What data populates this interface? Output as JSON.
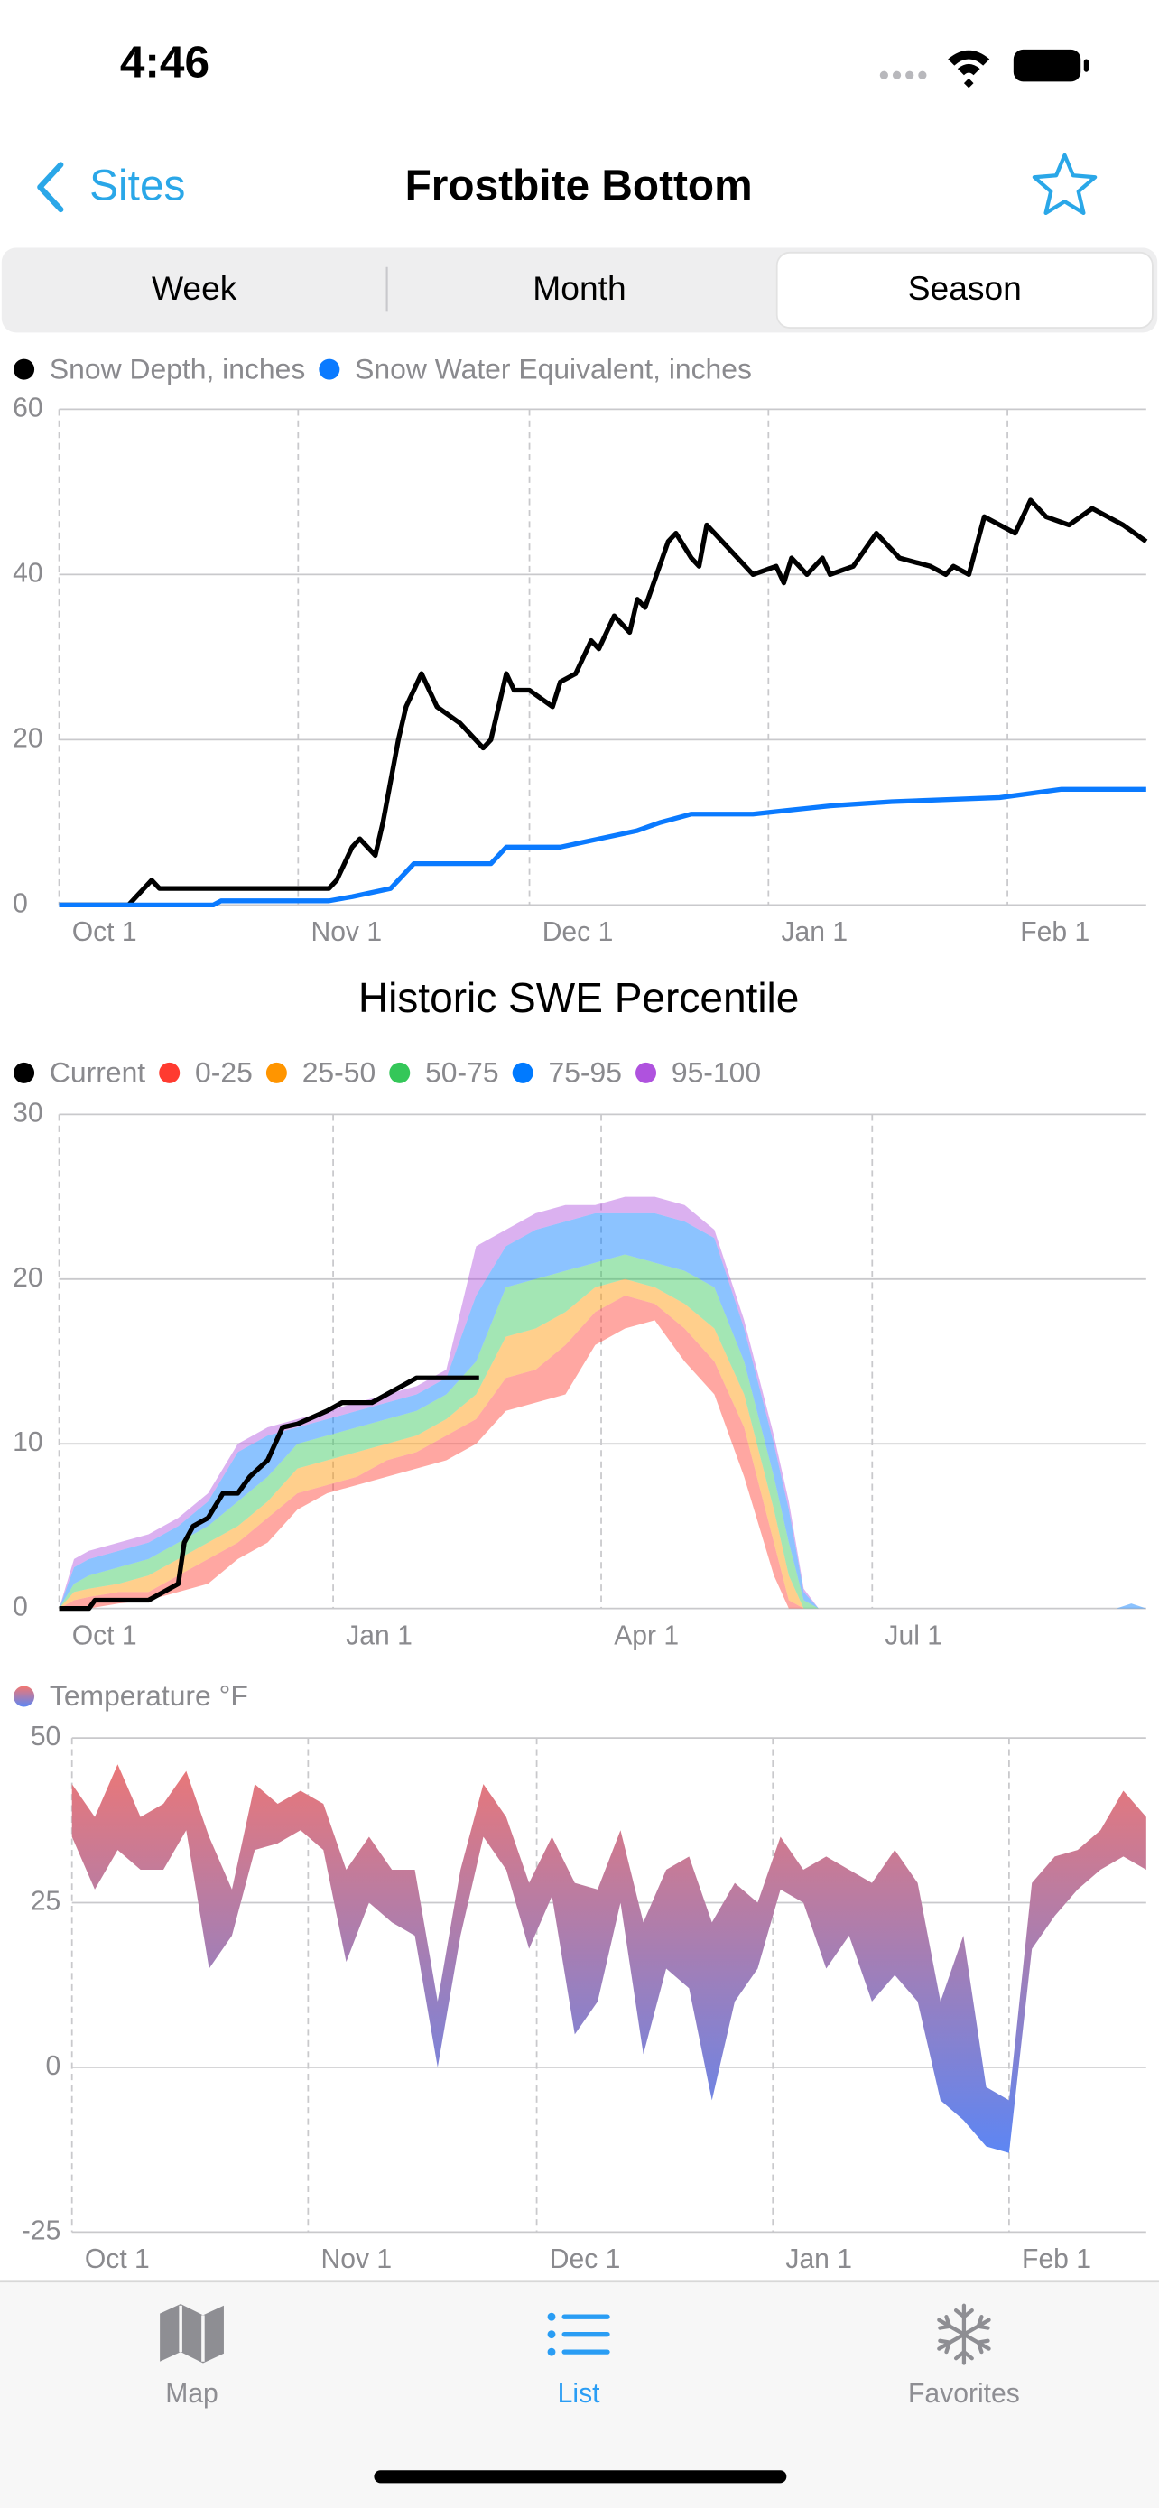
{
  "status": {
    "time": "4:46"
  },
  "nav": {
    "back": "Sites",
    "title": "Frostbite Bottom"
  },
  "segments": {
    "items": [
      "Week",
      "Month",
      "Season"
    ],
    "selected": 2
  },
  "chart_data": [
    {
      "type": "line",
      "xlim": [
        0,
        141
      ],
      "ylim": [
        0,
        60
      ],
      "yticks": [
        0,
        20,
        40,
        60
      ],
      "xticks": [
        {
          "value": 0,
          "label": "Oct 1"
        },
        {
          "value": 31,
          "label": "Nov 1"
        },
        {
          "value": 61,
          "label": "Dec 1"
        },
        {
          "value": 92,
          "label": "Jan 1"
        },
        {
          "value": 123,
          "label": "Feb 1"
        }
      ],
      "grid": true,
      "series": [
        {
          "name": "Snow Depth, inches",
          "color": "#000000",
          "x": [
            0,
            9,
            10,
            12,
            13,
            35,
            36,
            38,
            39,
            40,
            41,
            42,
            44,
            45,
            47,
            49,
            52,
            55,
            56,
            58,
            59,
            61,
            64,
            65,
            67,
            69,
            70,
            72,
            74,
            75,
            76,
            79,
            80,
            82,
            83,
            84,
            88,
            90,
            93,
            94,
            95,
            97,
            99,
            100,
            103,
            106,
            109,
            113,
            115,
            116,
            118,
            120,
            124,
            126,
            128,
            131,
            134,
            138,
            141
          ],
          "values": [
            0,
            0,
            1,
            3,
            2,
            2,
            3,
            7,
            8,
            7,
            6,
            10,
            20,
            24,
            28,
            24,
            22,
            19,
            20,
            28,
            26,
            26,
            24,
            27,
            28,
            32,
            31,
            35,
            33,
            37,
            36,
            44,
            45,
            42,
            41,
            46,
            42,
            40,
            41,
            39,
            42,
            40,
            42,
            40,
            41,
            45,
            42,
            41,
            40,
            41,
            40,
            47,
            45,
            49,
            47,
            46,
            48,
            46,
            44
          ]
        },
        {
          "name": "Snow Water Equivalent, inches",
          "color": "#0a7aff",
          "x": [
            0,
            20,
            21,
            35,
            38,
            43,
            46,
            56,
            58,
            65,
            70,
            75,
            78,
            82,
            90,
            95,
            100,
            108,
            122,
            126,
            130,
            141
          ],
          "values": [
            0,
            0,
            0.5,
            0.5,
            1,
            2,
            5,
            5,
            7,
            7,
            8,
            9,
            10,
            11,
            11,
            11.5,
            12,
            12.5,
            13,
            13.5,
            14,
            14
          ]
        }
      ]
    },
    {
      "type": "stacked_area",
      "title": "Historic SWE Percentile",
      "xlim": [
        0,
        365
      ],
      "ylim": [
        0,
        30
      ],
      "yticks": [
        0,
        10,
        20,
        30
      ],
      "xticks": [
        {
          "value": 0,
          "label": "Oct 1"
        },
        {
          "value": 92,
          "label": "Jan 1"
        },
        {
          "value": 182,
          "label": "Apr 1"
        },
        {
          "value": 273,
          "label": "Jul 1"
        }
      ],
      "grid": true,
      "area_opacity": 0.45,
      "x": [
        0,
        5,
        10,
        20,
        30,
        40,
        50,
        60,
        70,
        80,
        90,
        100,
        110,
        120,
        130,
        140,
        150,
        160,
        170,
        180,
        190,
        200,
        210,
        220,
        230,
        240,
        245,
        250,
        255,
        355,
        360,
        365
      ],
      "min": [
        0,
        0,
        0,
        0.3,
        0.5,
        1,
        1.5,
        3,
        4,
        6,
        7,
        7.5,
        8,
        8.5,
        9,
        10,
        12,
        12.5,
        13,
        16,
        17,
        17.5,
        15,
        13,
        8,
        2,
        0,
        0,
        0,
        0,
        0,
        0
      ],
      "series": [
        {
          "name": "Current",
          "color": "#000000",
          "style": "line",
          "x": [
            0,
            10,
            12,
            30,
            35,
            40,
            42,
            45,
            50,
            55,
            60,
            64,
            70,
            75,
            80,
            90,
            95,
            105,
            110,
            115,
            120,
            141
          ],
          "values": [
            0,
            0,
            0.5,
            0.5,
            1,
            1.5,
            4,
            5,
            5.5,
            7,
            7,
            8,
            9,
            11,
            11.2,
            12,
            12.5,
            12.5,
            13,
            13.5,
            14,
            14
          ]
        },
        {
          "name": "0-25",
          "color": "#ff3b30",
          "values": [
            0,
            0.5,
            0.7,
            0.7,
            0.5,
            1,
            1.5,
            1,
            1.5,
            1,
            0.5,
            0.5,
            1,
            1,
            1.5,
            1.5,
            2,
            2,
            3,
            2,
            2,
            1,
            2,
            2,
            3,
            2,
            0.5,
            0,
            0,
            0,
            0,
            0
          ]
        },
        {
          "name": "25-50",
          "color": "#ff9500",
          "values": [
            0,
            0.5,
            0.5,
            0.5,
            1,
            1,
            1,
            1,
            1,
            1.5,
            1.5,
            1.5,
            1,
            1,
            1,
            1.5,
            2.5,
            2.5,
            2,
            1.5,
            1,
            1,
            1.5,
            2,
            2,
            2,
            1.5,
            0,
            0,
            0,
            0,
            0
          ]
        },
        {
          "name": "50-75",
          "color": "#34c759",
          "values": [
            0,
            0.5,
            0.8,
            1,
            1,
            1,
            1,
            1.5,
            1.5,
            1.5,
            1.5,
            1.5,
            1.5,
            1.5,
            1.5,
            2,
            3,
            3,
            2.5,
            1.5,
            1.5,
            1.5,
            2,
            2.5,
            2,
            2,
            2,
            0.5,
            0,
            0,
            0,
            0
          ]
        },
        {
          "name": "75-95",
          "color": "#007aff",
          "values": [
            0,
            1,
            1,
            1,
            1,
            1,
            1.5,
            3,
            2.5,
            1,
            1,
            1,
            1,
            1,
            1,
            4,
            2.5,
            3,
            3,
            3,
            2.5,
            3,
            3,
            3,
            2,
            2,
            2,
            0.5,
            0,
            0,
            0.3,
            0
          ]
        },
        {
          "name": "95-100",
          "color": "#af52de",
          "values": [
            0,
            0.5,
            0.5,
            0.5,
            0.5,
            0.5,
            0.5,
            0.5,
            0.5,
            0.5,
            0.5,
            0.5,
            0.5,
            0.5,
            0.5,
            3,
            1,
            1,
            1,
            0.5,
            1,
            1,
            1,
            0.5,
            0.5,
            0.5,
            0.5,
            0.2,
            0,
            0,
            0,
            0
          ]
        }
      ]
    },
    {
      "type": "range_area",
      "xlim": [
        0,
        141
      ],
      "ylim": [
        -25,
        50
      ],
      "yticks": [
        -25,
        0,
        25,
        50
      ],
      "xticks": [
        {
          "value": 0,
          "label": "Oct 1"
        },
        {
          "value": 31,
          "label": "Nov 1"
        },
        {
          "value": 61,
          "label": "Dec 1"
        },
        {
          "value": 92,
          "label": "Jan 1"
        },
        {
          "value": 123,
          "label": "Feb 1"
        }
      ],
      "grid": true,
      "series": [
        {
          "name": "Temperature °F",
          "colors": [
            "#f4766f",
            "#5b86f5"
          ],
          "x": [
            0,
            3,
            6,
            9,
            12,
            15,
            18,
            21,
            24,
            27,
            30,
            33,
            36,
            39,
            42,
            45,
            48,
            51,
            54,
            57,
            60,
            63,
            66,
            69,
            72,
            75,
            78,
            81,
            84,
            87,
            90,
            93,
            96,
            99,
            102,
            105,
            108,
            111,
            114,
            117,
            120,
            123,
            126,
            129,
            132,
            135,
            138,
            141
          ],
          "high": [
            43,
            38,
            46,
            38,
            40,
            45,
            35,
            27,
            43,
            40,
            42,
            40,
            30,
            35,
            30,
            30,
            10,
            30,
            43,
            38,
            28,
            35,
            28,
            27,
            36,
            22,
            30,
            32,
            22,
            28,
            25,
            35,
            30,
            32,
            30,
            28,
            33,
            28,
            10,
            20,
            -3,
            -5,
            28,
            32,
            33,
            36,
            42,
            38
          ],
          "low": [
            35,
            27,
            33,
            30,
            30,
            36,
            15,
            20,
            33,
            34,
            36,
            33,
            16,
            25,
            22,
            20,
            0,
            20,
            35,
            30,
            18,
            26,
            5,
            10,
            25,
            2,
            15,
            12,
            -5,
            10,
            15,
            27,
            25,
            15,
            20,
            10,
            14,
            10,
            -5,
            -8,
            -12,
            -13,
            18,
            23,
            27,
            30,
            32,
            30
          ]
        }
      ]
    }
  ],
  "tabs": {
    "items": [
      "Map",
      "List",
      "Favorites"
    ],
    "selected": 1
  }
}
